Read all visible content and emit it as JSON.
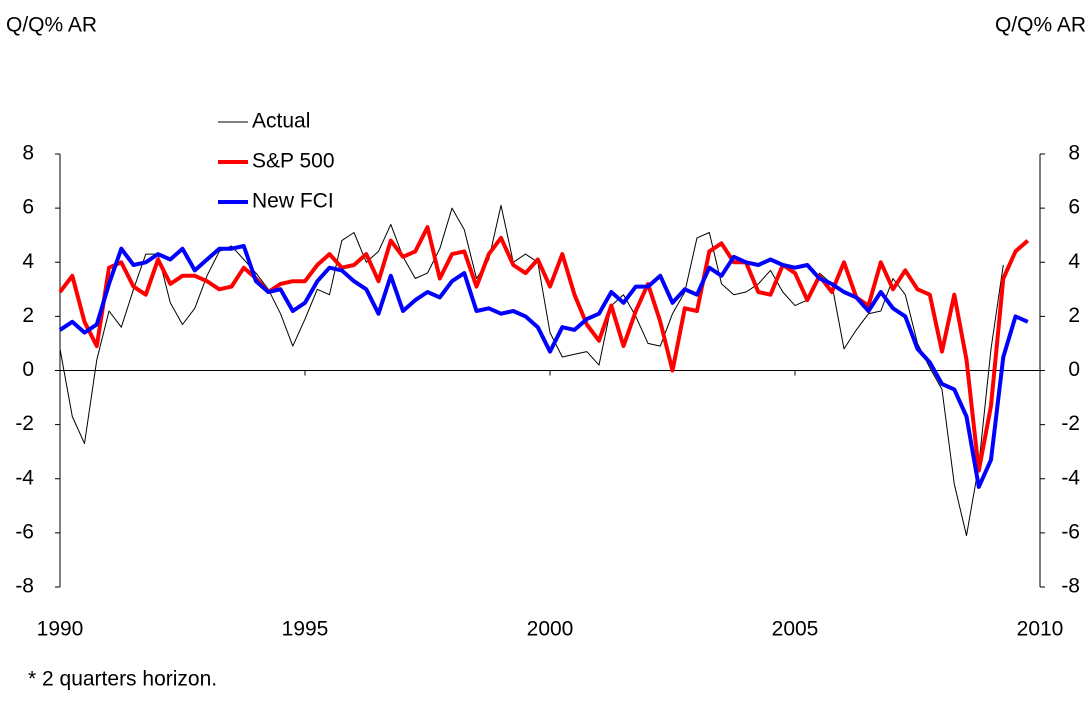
{
  "chart_data": {
    "type": "line",
    "y_label": "Q/Q% AR",
    "y2_label": "Q/Q% AR",
    "footnote": "* 2 quarters horizon.",
    "x": [
      1990,
      1990.25,
      1990.5,
      1990.75,
      1991,
      1991.25,
      1991.5,
      1991.75,
      1992,
      1992.25,
      1992.5,
      1992.75,
      1993,
      1993.25,
      1993.5,
      1993.75,
      1994,
      1994.25,
      1994.5,
      1994.75,
      1995,
      1995.25,
      1995.5,
      1995.75,
      1996,
      1996.25,
      1996.5,
      1996.75,
      1997,
      1997.25,
      1997.5,
      1997.75,
      1998,
      1998.25,
      1998.5,
      1998.75,
      1999,
      1999.25,
      1999.5,
      1999.75,
      2000,
      2000.25,
      2000.5,
      2000.75,
      2001,
      2001.25,
      2001.5,
      2001.75,
      2002,
      2002.25,
      2002.5,
      2002.75,
      2003,
      2003.25,
      2003.5,
      2003.75,
      2004,
      2004.25,
      2004.5,
      2004.75,
      2005,
      2005.25,
      2005.5,
      2005.75,
      2006,
      2006.25,
      2006.5,
      2006.75,
      2007,
      2007.25,
      2007.5,
      2007.75,
      2008,
      2008.25,
      2008.5,
      2008.75,
      2009,
      2009.25,
      2009.5,
      2009.75
    ],
    "series": [
      {
        "name": "Actual",
        "color": "#000000",
        "width": 1,
        "values": [
          0.8,
          -1.7,
          -2.7,
          0.4,
          2.2,
          1.6,
          3.0,
          4.3,
          4.3,
          2.5,
          1.7,
          2.3,
          3.5,
          4.4,
          4.6,
          4.1,
          3.6,
          3.0,
          2.1,
          0.9,
          1.9,
          3.0,
          2.8,
          4.8,
          5.1,
          4.0,
          4.4,
          5.4,
          4.2,
          3.4,
          3.6,
          4.5,
          6.0,
          5.2,
          3.4,
          4.1,
          6.1,
          4.0,
          4.3,
          4.0,
          1.4,
          0.5,
          0.6,
          0.7,
          0.2,
          2.4,
          2.8,
          2.0,
          1.0,
          0.9,
          2.1,
          2.9,
          4.9,
          5.1,
          3.2,
          2.8,
          2.9,
          3.2,
          3.7,
          2.9,
          2.4,
          2.6,
          3.6,
          3.2,
          0.8,
          1.5,
          2.1,
          2.2,
          3.4,
          2.8,
          1.0,
          0.1,
          -0.7,
          -4.2,
          -6.1,
          -3.5,
          0.8,
          3.9,
          null,
          null
        ]
      },
      {
        "name": "S&P 500",
        "color": "#ff0000",
        "width": 4,
        "values": [
          2.9,
          3.5,
          1.8,
          0.9,
          3.8,
          4.0,
          3.1,
          2.8,
          4.1,
          3.2,
          3.5,
          3.5,
          3.3,
          3.0,
          3.1,
          3.8,
          3.4,
          2.9,
          3.2,
          3.3,
          3.3,
          3.9,
          4.3,
          3.8,
          3.9,
          4.3,
          3.3,
          4.8,
          4.2,
          4.4,
          5.3,
          3.4,
          4.3,
          4.4,
          3.1,
          4.3,
          4.9,
          3.9,
          3.6,
          4.1,
          3.1,
          4.3,
          2.8,
          1.7,
          1.1,
          2.4,
          0.9,
          2.2,
          3.2,
          1.8,
          0.0,
          2.3,
          2.2,
          4.4,
          4.7,
          4.0,
          4.0,
          2.9,
          2.8,
          3.9,
          3.6,
          2.6,
          3.5,
          2.9,
          4.0,
          2.7,
          2.4,
          4.0,
          3.0,
          3.7,
          3.0,
          2.8,
          0.7,
          2.8,
          0.4,
          -3.7,
          -1.3,
          3.4,
          4.4,
          4.8
        ]
      },
      {
        "name": "New FCI",
        "color": "#0000ff",
        "width": 4,
        "values": [
          1.5,
          1.8,
          1.4,
          1.7,
          3.2,
          4.5,
          3.9,
          4.0,
          4.3,
          4.1,
          4.5,
          3.7,
          4.1,
          4.5,
          4.5,
          4.6,
          3.3,
          2.9,
          3.0,
          2.2,
          2.5,
          3.3,
          3.8,
          3.7,
          3.3,
          3.0,
          2.1,
          3.5,
          2.2,
          2.6,
          2.9,
          2.7,
          3.3,
          3.6,
          2.2,
          2.3,
          2.1,
          2.2,
          2.0,
          1.6,
          0.7,
          1.6,
          1.5,
          1.9,
          2.1,
          2.9,
          2.5,
          3.1,
          3.1,
          3.5,
          2.5,
          3.0,
          2.8,
          3.8,
          3.5,
          4.2,
          4.0,
          3.9,
          4.1,
          3.9,
          3.8,
          3.9,
          3.4,
          3.2,
          2.9,
          2.7,
          2.2,
          2.9,
          2.3,
          2.0,
          0.8,
          0.3,
          -0.5,
          -0.7,
          -1.7,
          -4.3,
          -3.3,
          0.5,
          2.0,
          1.8
        ]
      }
    ],
    "xlim": [
      1990,
      2010
    ],
    "xticks": [
      1990,
      1995,
      2000,
      2005,
      2010
    ],
    "ylim": [
      -8,
      8
    ],
    "yticks": [
      -8,
      -6,
      -4,
      -2,
      0,
      2,
      4,
      6,
      8
    ],
    "y2lim": [
      -8,
      8
    ],
    "y2ticks": [
      -8,
      -6,
      -4,
      -2,
      0,
      2,
      4,
      6,
      8
    ],
    "legend": "upper left"
  }
}
